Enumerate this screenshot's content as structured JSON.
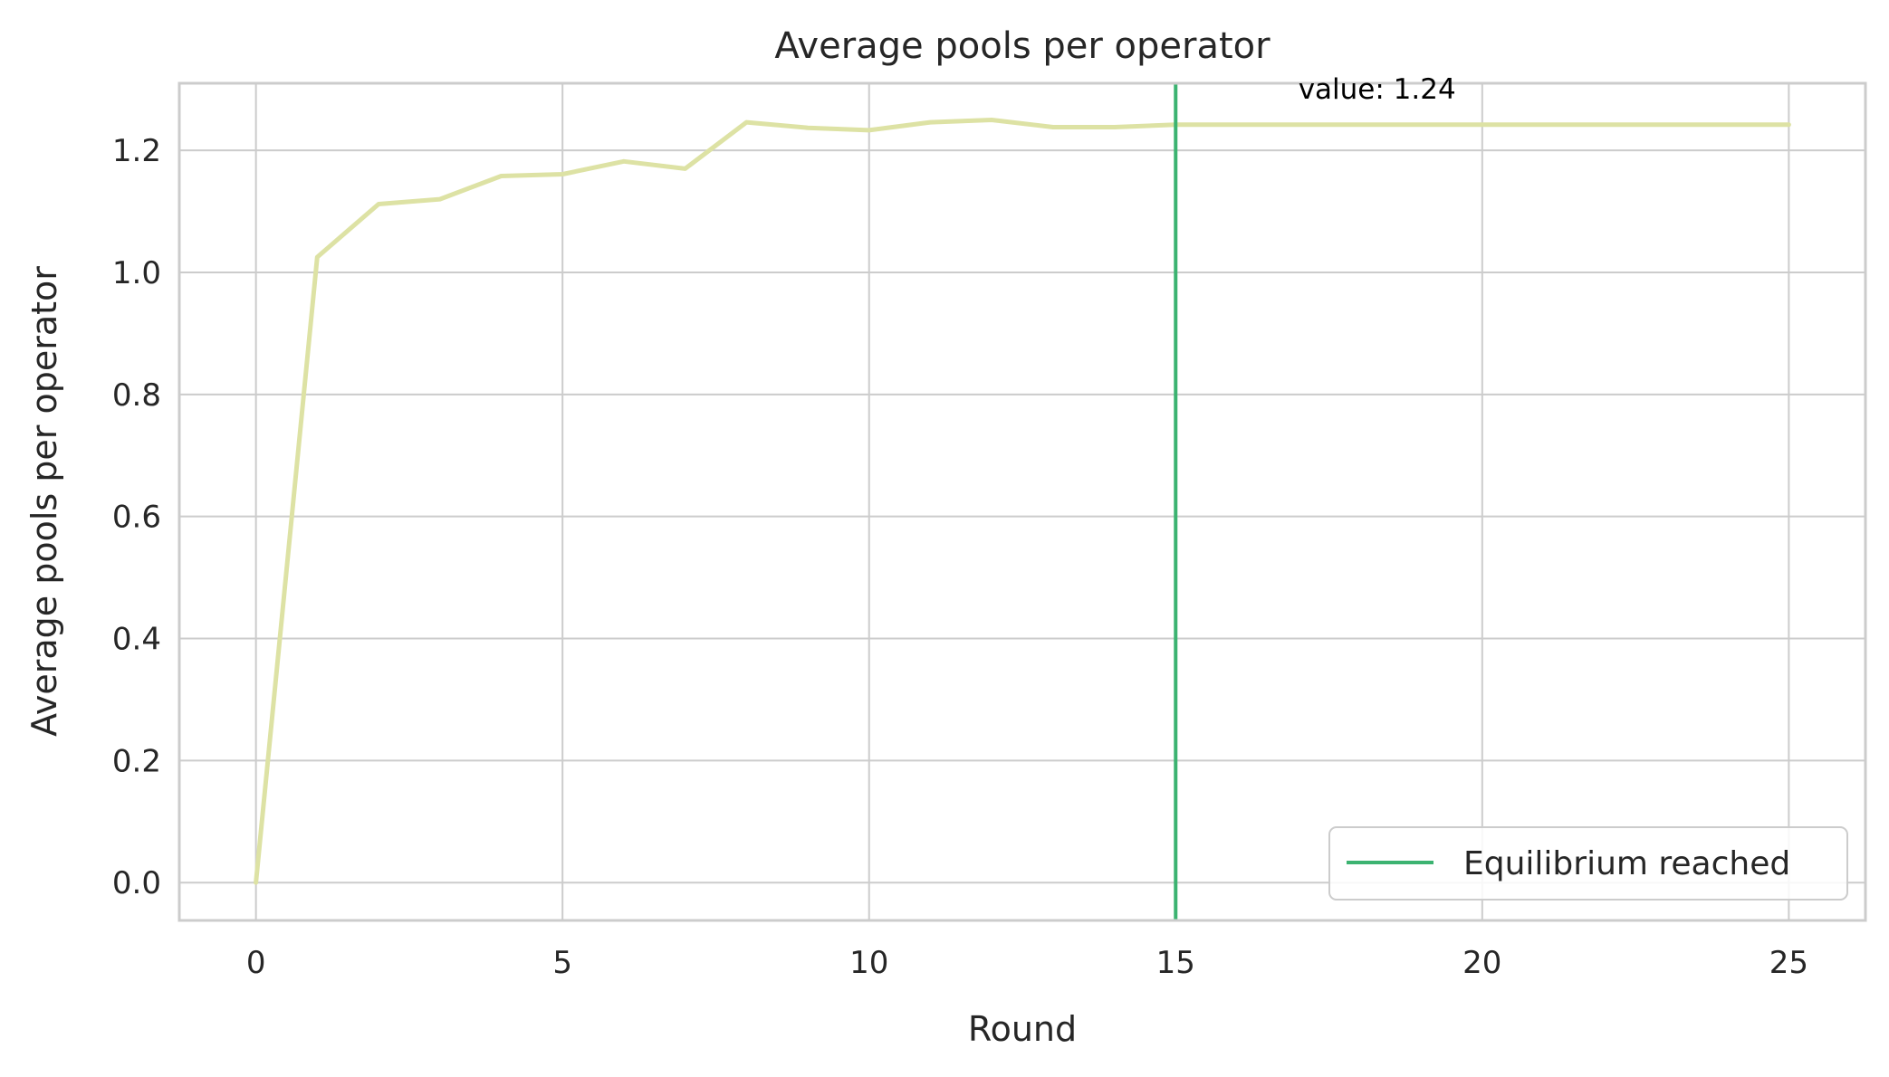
{
  "chart_data": {
    "type": "line",
    "title": "Average pools per operator",
    "xlabel": "Round",
    "ylabel": "Average pools per operator",
    "xlim": [
      -1.25,
      26.25
    ],
    "ylim": [
      -0.062,
      1.31
    ],
    "x_ticks": [
      0,
      5,
      10,
      15,
      20,
      25
    ],
    "y_ticks": [
      0.0,
      0.2,
      0.4,
      0.6,
      0.8,
      1.0,
      1.2
    ],
    "grid": true,
    "series": [
      {
        "color": "#dde2a4",
        "x": [
          0,
          1,
          2,
          3,
          4,
          5,
          6,
          7,
          8,
          9,
          10,
          11,
          12,
          13,
          14,
          15,
          16,
          17,
          18,
          19,
          20,
          21,
          22,
          23,
          24,
          25
        ],
        "y": [
          0.0,
          1.025,
          1.112,
          1.12,
          1.158,
          1.161,
          1.182,
          1.17,
          1.246,
          1.237,
          1.233,
          1.246,
          1.25,
          1.238,
          1.238,
          1.242,
          1.242,
          1.242,
          1.242,
          1.242,
          1.242,
          1.242,
          1.242,
          1.242,
          1.242,
          1.242
        ]
      }
    ],
    "vline": {
      "x": 15,
      "color": "#3cb371",
      "label": "Equilibrium reached"
    },
    "annotation": {
      "text": "value: 1.24",
      "x": 17,
      "y": 1.285
    },
    "legend": {
      "position": "lower-right",
      "entries": [
        "Equilibrium reached"
      ]
    },
    "colors": {
      "grid": "#cccccc",
      "frame": "#cccccc",
      "text": "#262626"
    }
  }
}
